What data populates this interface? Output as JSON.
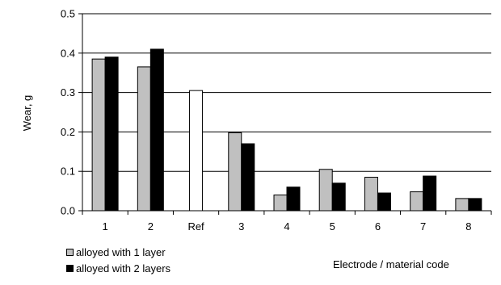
{
  "chart_data": {
    "type": "bar",
    "categories": [
      "1",
      "2",
      "Ref",
      "3",
      "4",
      "5",
      "6",
      "7",
      "8"
    ],
    "series": [
      {
        "name": "alloyed with 1 layer",
        "color": "#c0c0c0",
        "values": [
          0.385,
          0.365,
          null,
          0.198,
          0.04,
          0.105,
          0.085,
          0.048,
          0.031
        ]
      },
      {
        "name": "alloyed with 2 layers",
        "color": "#000000",
        "values": [
          0.39,
          0.41,
          null,
          0.17,
          0.06,
          0.07,
          0.045,
          0.088,
          0.031
        ]
      }
    ],
    "reference": {
      "category": "Ref",
      "value": 0.305,
      "color": "#ffffff"
    },
    "ylabel": "Wear, g",
    "xlabel": "Electrode / material code",
    "ylim": [
      0,
      0.5
    ],
    "yticks": [
      "0.0",
      "0.1",
      "0.2",
      "0.3",
      "0.4",
      "0.5"
    ],
    "grid": true,
    "legend_position": "bottom-left"
  }
}
